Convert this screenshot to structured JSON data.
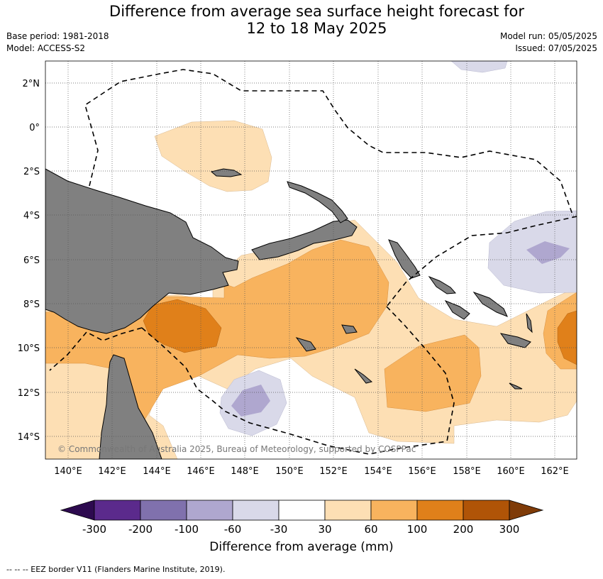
{
  "title_line1": "Difference from average sea surface height forecast for",
  "title_line2": "12 to 18 May 2025",
  "base_period": "Base period: 1981-2018",
  "model": "Model: ACCESS-S2",
  "model_run": "Model run: 05/05/2025",
  "issued": "Issued: 07/05/2025",
  "lat_labels": [
    "2°N",
    "0°",
    "2°S",
    "4°S",
    "6°S",
    "8°S",
    "10°S",
    "12°S",
    "14°S"
  ],
  "lon_labels": [
    "140°E",
    "142°E",
    "144°E",
    "146°E",
    "148°E",
    "150°E",
    "152°E",
    "154°E",
    "156°E",
    "158°E",
    "160°E",
    "162°E"
  ],
  "copyright": "© Commonwealth of Australia 2025, Bureau of Meteorology, supported by COSPPac",
  "colorbar": {
    "tick_labels": [
      "-300",
      "-200",
      "-100",
      "-60",
      "-30",
      "30",
      "60",
      "100",
      "200",
      "300"
    ],
    "colors": [
      "#5b2a8c",
      "#8071ad",
      "#afa7cf",
      "#d9d9e9",
      "#ffffff",
      "#fddfb4",
      "#f8b35e",
      "#e0801a",
      "#b05407"
    ],
    "under_color": "#2d0a4f",
    "over_color": "#7f3b08",
    "label": "Difference from average (mm)"
  },
  "colors": {
    "land": "#808080",
    "light_orange": "#fddfb4",
    "mid_orange": "#f8b35e",
    "dark_orange": "#e0801a",
    "light_purple": "#d9d9e9",
    "mid_purple": "#afa7cf"
  },
  "legend_note": "--  --  -- EEZ border V11 (Flanders Marine Institute, 2019)."
}
